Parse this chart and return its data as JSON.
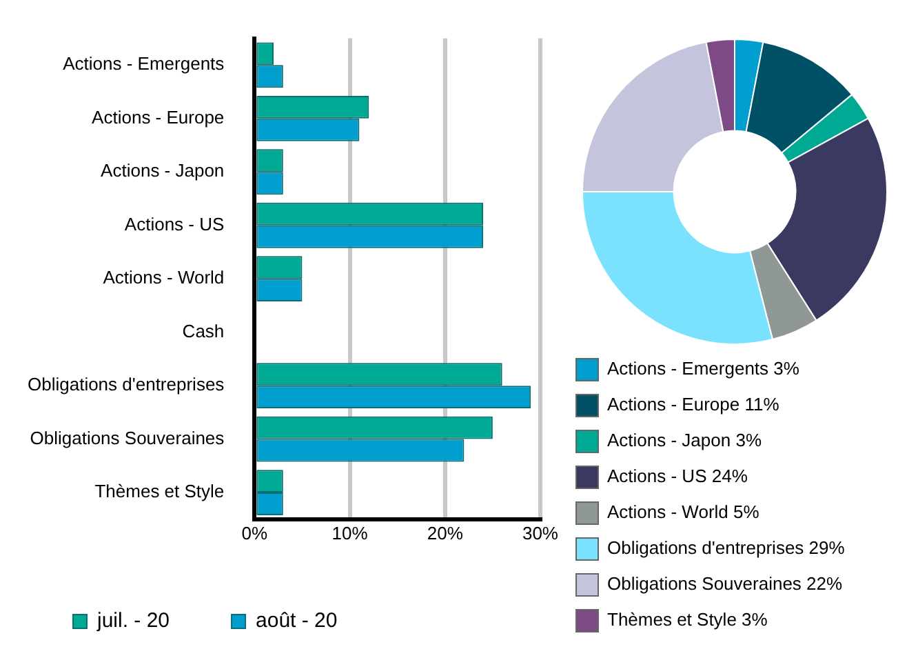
{
  "chart_data": [
    {
      "type": "bar",
      "orientation": "horizontal",
      "categories": [
        "Actions - Emergents",
        "Actions - Europe",
        "Actions - Japon",
        "Actions - US",
        "Actions - World",
        "Cash",
        "Obligations d'entreprises",
        "Obligations Souveraines",
        "Thèmes et Style"
      ],
      "series": [
        {
          "name": "juil. - 20",
          "color": "#00a994",
          "values": [
            2,
            12,
            3,
            24,
            5,
            0,
            26,
            25,
            3
          ]
        },
        {
          "name": "août - 20",
          "color": "#009fd0",
          "values": [
            3,
            11,
            3,
            24,
            5,
            0,
            29,
            22,
            3
          ]
        }
      ],
      "xlim": [
        0,
        30
      ],
      "xticks": [
        {
          "value": 0,
          "label": "0%"
        },
        {
          "value": 10,
          "label": "10%"
        },
        {
          "value": 20,
          "label": "20%"
        },
        {
          "value": 30,
          "label": "30%"
        }
      ],
      "grid": "x",
      "legend": "bottom"
    },
    {
      "type": "donut",
      "categories": [
        "Actions - Emergents",
        "Actions - Europe",
        "Actions - Japon",
        "Actions - US",
        "Actions - World",
        "Obligations d'entreprises",
        "Obligations Souveraines",
        "Thèmes et Style"
      ],
      "values": [
        3,
        11,
        3,
        24,
        5,
        29,
        22,
        3
      ],
      "value_labels": [
        "3%",
        "11%",
        "3%",
        "24%",
        "5%",
        "29%",
        "22%",
        "3%"
      ],
      "colors": [
        "#009fd0",
        "#005066",
        "#00a994",
        "#3a3960",
        "#909896",
        "#7ae2ff",
        "#c4c4dc",
        "#7d4a86"
      ],
      "legend": "bottom"
    }
  ]
}
